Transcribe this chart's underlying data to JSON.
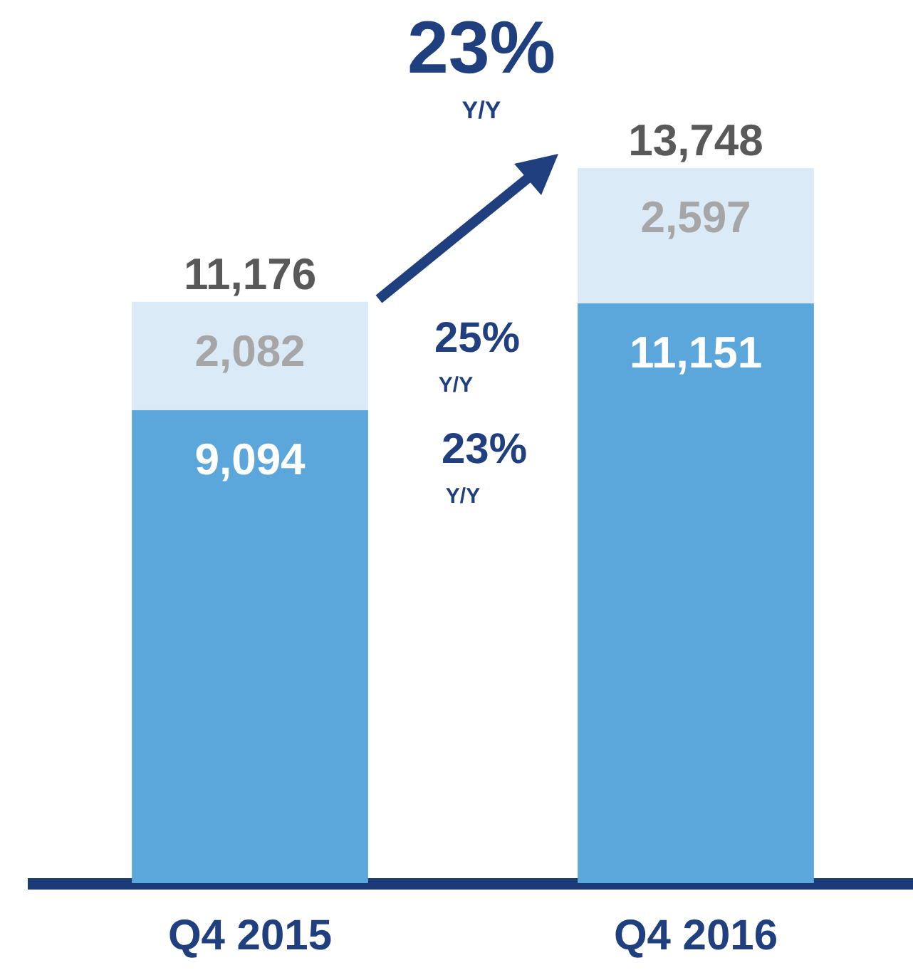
{
  "chart_data": {
    "type": "bar",
    "stacked": true,
    "categories": [
      "Q4 2015",
      "Q4 2016"
    ],
    "series": [
      {
        "color": "#5ba7dc",
        "values": [
          9094,
          11151
        ],
        "value_labels": [
          "9,094",
          "11,151"
        ]
      },
      {
        "color": "#daeaf6",
        "values": [
          2082,
          2597
        ],
        "value_labels": [
          "2,082",
          "2,597"
        ]
      }
    ],
    "totals": [
      "11,176",
      "13,748"
    ],
    "annotations": [
      "23%",
      "Y/Y",
      "25%",
      "Y/Y",
      "23%",
      "Y/Y"
    ]
  }
}
